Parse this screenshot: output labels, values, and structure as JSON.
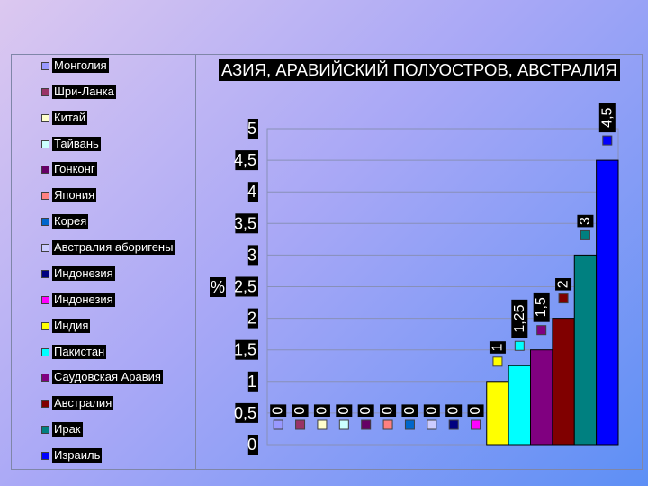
{
  "chart_data": {
    "type": "bar",
    "title": "АЗИЯ, АРАВИЙСКИЙ ПОЛУОСТРОВ, АВСТРАЛИЯ",
    "ylabel": "%",
    "xlabel": "",
    "ylim": [
      0,
      5
    ],
    "yticks": [
      "0",
      "0,5",
      "1",
      "1,5",
      "2",
      "2,5",
      "3",
      "3,5",
      "4",
      "4,5",
      "5"
    ],
    "grid": true,
    "legend_position": "left",
    "series": [
      {
        "name": "Монголия",
        "value": 0,
        "label": "0",
        "color": "#9999ff"
      },
      {
        "name": "Шри-Ланка",
        "value": 0,
        "label": "0",
        "color": "#993366"
      },
      {
        "name": "Китай",
        "value": 0,
        "label": "0",
        "color": "#ffffcc"
      },
      {
        "name": "Тайвань",
        "value": 0,
        "label": "0",
        "color": "#ccffff"
      },
      {
        "name": "Гонконг",
        "value": 0,
        "label": "0",
        "color": "#660066"
      },
      {
        "name": "Япония",
        "value": 0,
        "label": "0",
        "color": "#ff8080"
      },
      {
        "name": "Корея",
        "value": 0,
        "label": "0",
        "color": "#0066cc"
      },
      {
        "name": "Австралия аборигены",
        "value": 0,
        "label": "0",
        "color": "#ccccff"
      },
      {
        "name": "Индонезия",
        "value": 0,
        "label": "0",
        "color": "#000080"
      },
      {
        "name": "Индонезия",
        "value": 0,
        "label": "0",
        "color": "#ff00ff"
      },
      {
        "name": "Индия",
        "value": 1,
        "label": "1",
        "color": "#ffff00"
      },
      {
        "name": "Пакистан",
        "value": 1.25,
        "label": "1,25",
        "color": "#00ffff"
      },
      {
        "name": "Саудовская Аравия",
        "value": 1.5,
        "label": "1,5",
        "color": "#800080"
      },
      {
        "name": "Австралия",
        "value": 2,
        "label": "2",
        "color": "#800000"
      },
      {
        "name": "Ирак",
        "value": 3,
        "label": "3",
        "color": "#008080"
      },
      {
        "name": "Израиль",
        "value": 4.5,
        "label": "4,5",
        "color": "#0000ff"
      }
    ]
  }
}
